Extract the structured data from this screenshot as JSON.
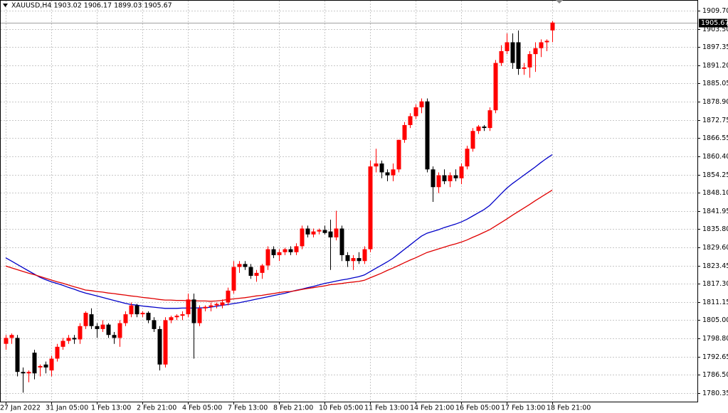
{
  "chart_data": {
    "type": "candlestick",
    "title": "XAUUSD,H4  1903.02 1906.17 1899.03 1905.67",
    "current_price": 1905.67,
    "up_color": "#ff0000",
    "down_color": "#000000",
    "grid": true,
    "ylim": [
      1777.45,
      1913.3
    ],
    "yticks": [
      {
        "value": 1909.7,
        "label": "1909.70"
      },
      {
        "value": 1903.5,
        "label": "1903.50"
      },
      1897.35,
      {
        "value": 1891.2,
        "label": "1891.20"
      },
      1885.05,
      {
        "value": 1878.9,
        "label": "1878.90"
      },
      1872.75,
      1866.55,
      {
        "value": 1860.4,
        "label": "1860.40"
      },
      1854.25,
      {
        "value": 1848.1,
        "label": "1848.10"
      },
      1841.95,
      {
        "value": 1835.8,
        "label": "1835.80"
      },
      {
        "value": 1829.6,
        "label": "1829.60"
      },
      1823.45,
      {
        "value": 1817.3,
        "label": "1817.30"
      },
      1811.15,
      {
        "value": 1805,
        "label": "1805.00"
      },
      {
        "value": 1798.8,
        "label": "1798.80"
      },
      1792.65,
      {
        "value": 1786.5,
        "label": "1786.50"
      },
      1780.35
    ],
    "categories": [
      "27 Jan 2022",
      null,
      null,
      null,
      null,
      null,
      null,
      null,
      "31 Jan 05:00",
      null,
      null,
      null,
      null,
      null,
      null,
      null,
      "1 Feb 13:00",
      null,
      null,
      null,
      null,
      null,
      null,
      null,
      "2 Feb 21:00",
      null,
      null,
      null,
      null,
      null,
      null,
      null,
      "4 Feb 05:00",
      null,
      null,
      null,
      null,
      null,
      null,
      null,
      "7 Feb 13:00",
      null,
      null,
      null,
      null,
      null,
      null,
      null,
      "8 Feb 21:00",
      null,
      null,
      null,
      null,
      null,
      null,
      null,
      "10 Feb 05:00",
      null,
      null,
      null,
      null,
      null,
      null,
      null,
      "11 Feb 13:00",
      null,
      null,
      null,
      null,
      null,
      null,
      null,
      "14 Feb 21:00",
      null,
      null,
      null,
      null,
      null,
      null,
      null,
      "16 Feb 05:00",
      null,
      null,
      null,
      null,
      null,
      null,
      null,
      "17 Feb 13:00",
      null,
      null,
      null,
      null,
      null,
      null,
      null,
      "18 Feb 21:00"
    ],
    "open": [
      1797,
      1799,
      1799,
      1787.5,
      1787,
      1794,
      1789,
      1790,
      1788,
      1792,
      1796,
      1798,
      1799,
      1798.5,
      1803,
      1807,
      1803,
      1802,
      1803.5,
      1800,
      1799,
      1804,
      1807,
      1810,
      1807,
      1807.5,
      1805,
      1802,
      1790,
      1805,
      1806,
      1806.5,
      1807,
      1812,
      1804,
      1809,
      1809.5,
      1810,
      1810,
      1811,
      1815,
      1823,
      1824,
      1823,
      1820,
      1821,
      1823.5,
      1829,
      1827,
      1828,
      1829,
      1828,
      1830,
      1836,
      1834,
      1835,
      1835.5,
      1835,
      1833,
      1836,
      1827,
      1825,
      1826,
      1825,
      1829,
      1857,
      1858,
      1855,
      1854,
      1856,
      1866,
      1871,
      1874,
      1877,
      1879,
      1856,
      1850,
      1854,
      1852,
      1854,
      1853,
      1857,
      1863,
      1869,
      1870.5,
      1870,
      1876,
      1892,
      1896,
      1899,
      1899,
      1890,
      1890.5,
      1895,
      1897,
      1899,
      1903.02
    ],
    "high": [
      1800,
      1800.5,
      1800,
      1789,
      1788,
      1795,
      1790,
      1791,
      1793,
      1797,
      1799,
      1800,
      1800,
      1804,
      1808,
      1809,
      1804,
      1805,
      1804,
      1801,
      1805,
      1808,
      1811,
      1810.5,
      1808,
      1808,
      1806,
      1803,
      1806,
      1806.5,
      1807,
      1808,
      1814,
      1814,
      1810,
      1810,
      1811,
      1811,
      1812,
      1816,
      1825,
      1825,
      1825,
      1824,
      1822,
      1824,
      1830,
      1830,
      1829,
      1829.5,
      1830,
      1831,
      1837,
      1837,
      1836,
      1836,
      1837,
      1839,
      1842,
      1837,
      1828,
      1827,
      1828,
      1830,
      1859,
      1863,
      1859,
      1856,
      1858,
      1866,
      1872,
      1875,
      1878,
      1880,
      1880,
      1857,
      1855,
      1856,
      1855,
      1856,
      1858,
      1864,
      1870,
      1871,
      1871,
      1877,
      1893,
      1898,
      1902,
      1902,
      1903,
      1892,
      1896,
      1899,
      1900,
      1900,
      1906.17
    ],
    "low": [
      1795,
      1797,
      1786,
      1780.5,
      1784,
      1785,
      1786,
      1787,
      1786,
      1791,
      1795,
      1797,
      1797,
      1797,
      1802,
      1802,
      1799,
      1801,
      1799,
      1797,
      1796,
      1803,
      1806,
      1806,
      1806,
      1804,
      1801,
      1788,
      1789,
      1804,
      1805,
      1805,
      1806,
      1792,
      1803,
      1808,
      1808,
      1809,
      1809,
      1810,
      1814,
      1821,
      1822,
      1819,
      1818,
      1819,
      1822,
      1826,
      1825,
      1827,
      1827,
      1827,
      1829,
      1833,
      1833,
      1834,
      1834,
      1822,
      1832,
      1825,
      1823,
      1822,
      1824,
      1824,
      1828,
      1855,
      1853,
      1852,
      1852,
      1855,
      1865,
      1870,
      1873,
      1875,
      1855,
      1845,
      1848,
      1851,
      1850,
      1852,
      1851,
      1856,
      1862,
      1868,
      1869,
      1869,
      1875,
      1891,
      1895,
      1890,
      1888,
      1888,
      1887,
      1889,
      1894,
      1896,
      1899.03
    ],
    "close": [
      1799,
      1800,
      1787.5,
      1787,
      1787.5,
      1787,
      1789.5,
      1789,
      1792,
      1796,
      1798,
      1799,
      1798.5,
      1803,
      1807.5,
      1803,
      1802,
      1803.5,
      1800,
      1799,
      1804,
      1807,
      1810,
      1807,
      1807.5,
      1805,
      1802,
      1790,
      1805,
      1806,
      1806.5,
      1807,
      1812,
      1804,
      1809,
      1809.5,
      1810,
      1810.5,
      1811,
      1815,
      1823,
      1824,
      1823,
      1820,
      1821,
      1823.5,
      1829,
      1827,
      1828,
      1829,
      1828,
      1830,
      1836,
      1834,
      1835,
      1835.5,
      1834.5,
      1833,
      1836,
      1827,
      1825,
      1826,
      1825,
      1829,
      1857,
      1858,
      1855,
      1854,
      1856,
      1866,
      1871,
      1874,
      1877,
      1879,
      1856,
      1850,
      1854,
      1852,
      1854,
      1853,
      1857,
      1863,
      1869,
      1870.5,
      1870,
      1876,
      1892,
      1896,
      1899,
      1892,
      1890,
      1890.5,
      1895,
      1897,
      1899,
      1899.5,
      1905.67
    ],
    "series": [
      {
        "color": "#0000c8",
        "values": [
          1826.1,
          1825.0,
          1823.9,
          1822.8,
          1821.7,
          1820.6,
          1819.5,
          1818.7,
          1818.0,
          1817.4,
          1816.8,
          1816.1,
          1815.5,
          1814.8,
          1814.2,
          1813.7,
          1813.2,
          1812.7,
          1812.2,
          1811.7,
          1811.2,
          1810.7,
          1810.3,
          1810.1,
          1809.8,
          1809.6,
          1809.4,
          1809.2,
          1809.0,
          1809.0,
          1809.0,
          1809.1,
          1809.1,
          1809.1,
          1809.2,
          1809.2,
          1809.4,
          1809.7,
          1810.0,
          1810.3,
          1810.6,
          1810.9,
          1811.3,
          1811.7,
          1812.1,
          1812.5,
          1812.9,
          1813.3,
          1813.7,
          1814.1,
          1814.6,
          1815.1,
          1815.5,
          1816.0,
          1816.4,
          1816.9,
          1817.4,
          1817.8,
          1818.2,
          1818.6,
          1818.9,
          1819.3,
          1819.7,
          1820.3,
          1821.4,
          1822.5,
          1823.6,
          1824.7,
          1825.9,
          1827.4,
          1828.9,
          1830.4,
          1831.9,
          1833.4,
          1834.4,
          1835.0,
          1835.6,
          1836.3,
          1836.9,
          1837.5,
          1838.2,
          1839.1,
          1840.2,
          1841.3,
          1842.4,
          1843.8,
          1845.7,
          1847.7,
          1849.6,
          1851.2,
          1852.6,
          1854.0,
          1855.4,
          1856.8,
          1858.3,
          1859.7,
          1861.0
        ]
      },
      {
        "color": "#e00000",
        "values": [
          1823.3,
          1822.7,
          1822.1,
          1821.5,
          1820.9,
          1820.4,
          1819.8,
          1819.2,
          1818.6,
          1818.0,
          1817.5,
          1816.9,
          1816.3,
          1815.8,
          1815.2,
          1815.0,
          1814.7,
          1814.5,
          1814.2,
          1814.0,
          1813.7,
          1813.5,
          1813.2,
          1813.0,
          1812.7,
          1812.5,
          1812.3,
          1812.0,
          1811.8,
          1811.8,
          1811.7,
          1811.7,
          1811.6,
          1811.6,
          1811.5,
          1811.5,
          1811.4,
          1811.5,
          1811.7,
          1812.0,
          1812.2,
          1812.4,
          1812.6,
          1812.9,
          1813.2,
          1813.4,
          1813.7,
          1814.0,
          1814.3,
          1814.6,
          1814.7,
          1815.0,
          1815.4,
          1815.7,
          1816.0,
          1816.3,
          1816.6,
          1817.0,
          1817.2,
          1817.4,
          1817.7,
          1817.9,
          1818.1,
          1818.5,
          1819.3,
          1820.1,
          1820.9,
          1821.8,
          1822.6,
          1823.5,
          1824.4,
          1825.3,
          1826.1,
          1827.0,
          1827.9,
          1828.5,
          1829.1,
          1829.7,
          1830.3,
          1830.8,
          1831.4,
          1832.1,
          1833.0,
          1833.8,
          1834.7,
          1835.6,
          1836.8,
          1838.0,
          1839.2,
          1840.5,
          1841.7,
          1842.9,
          1844.1,
          1845.4,
          1846.6,
          1847.8,
          1849.0
        ]
      }
    ]
  }
}
